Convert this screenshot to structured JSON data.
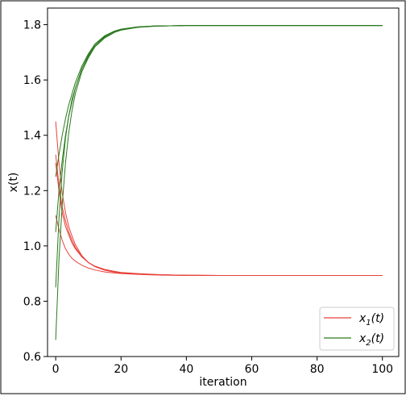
{
  "chart_data": {
    "type": "line",
    "title": "",
    "xlabel": "iteration",
    "ylabel": "x(t)",
    "xlim": [
      -2.5,
      105
    ],
    "ylim": [
      0.6,
      1.86
    ],
    "xticks": [
      0,
      20,
      40,
      60,
      80,
      100
    ],
    "yticks": [
      0.6,
      0.8,
      1.0,
      1.2,
      1.4,
      1.6,
      1.8
    ],
    "xtick_labels": [
      "0",
      "20",
      "40",
      "60",
      "80",
      "100"
    ],
    "ytick_labels": [
      "0.6",
      "0.8",
      "1.0",
      "1.2",
      "1.4",
      "1.6",
      "1.8"
    ],
    "grid": false,
    "legend_position": "bottom-right",
    "legend": [
      {
        "label_main": "x",
        "label_sub": "1",
        "label_tail": "(t)",
        "color": "#e8413a"
      },
      {
        "label_main": "x",
        "label_sub": "2",
        "label_tail": "(t)",
        "color": "#2b7a1e"
      }
    ],
    "x_samples": [
      0,
      1,
      2,
      3,
      4,
      5,
      6,
      8,
      10,
      12,
      15,
      18,
      20,
      25,
      30,
      35,
      40,
      50,
      60,
      80,
      100
    ],
    "series": [
      {
        "group": "x1",
        "color": "#e8413a",
        "values": [
          1.45,
          1.3,
          1.19,
          1.12,
          1.07,
          1.035,
          1.005,
          0.965,
          0.94,
          0.925,
          0.912,
          0.905,
          0.902,
          0.898,
          0.896,
          0.895,
          0.894,
          0.893,
          0.893,
          0.893,
          0.893
        ]
      },
      {
        "group": "x1",
        "color": "#e8413a",
        "values": [
          1.33,
          1.22,
          1.14,
          1.09,
          1.05,
          1.02,
          0.995,
          0.962,
          0.94,
          0.926,
          0.914,
          0.907,
          0.903,
          0.899,
          0.896,
          0.895,
          0.894,
          0.893,
          0.893,
          0.893,
          0.893
        ]
      },
      {
        "group": "x1",
        "color": "#e8413a",
        "values": [
          1.11,
          1.06,
          1.02,
          0.99,
          0.97,
          0.955,
          0.945,
          0.93,
          0.92,
          0.913,
          0.906,
          0.902,
          0.9,
          0.897,
          0.895,
          0.894,
          0.893,
          0.893,
          0.893,
          0.893,
          0.893
        ]
      },
      {
        "group": "x1",
        "color": "#e8413a",
        "values": [
          1.3,
          1.2,
          1.12,
          1.07,
          1.04,
          1.01,
          0.99,
          0.96,
          0.94,
          0.927,
          0.915,
          0.908,
          0.904,
          0.9,
          0.897,
          0.895,
          0.894,
          0.893,
          0.893,
          0.893,
          0.893
        ]
      },
      {
        "group": "x2",
        "color": "#2b7a1e",
        "values": [
          0.66,
          0.95,
          1.15,
          1.3,
          1.41,
          1.49,
          1.55,
          1.63,
          1.68,
          1.72,
          1.755,
          1.775,
          1.782,
          1.791,
          1.795,
          1.796,
          1.797,
          1.797,
          1.797,
          1.797,
          1.797
        ]
      },
      {
        "group": "x2",
        "color": "#2b7a1e",
        "values": [
          0.85,
          1.1,
          1.27,
          1.39,
          1.47,
          1.53,
          1.57,
          1.64,
          1.685,
          1.72,
          1.752,
          1.772,
          1.78,
          1.79,
          1.794,
          1.796,
          1.797,
          1.797,
          1.797,
          1.797,
          1.797
        ]
      },
      {
        "group": "x2",
        "color": "#2b7a1e",
        "values": [
          1.25,
          1.33,
          1.4,
          1.46,
          1.51,
          1.55,
          1.59,
          1.65,
          1.695,
          1.73,
          1.76,
          1.777,
          1.784,
          1.792,
          1.795,
          1.796,
          1.797,
          1.797,
          1.797,
          1.797,
          1.797
        ]
      },
      {
        "group": "x2",
        "color": "#2b7a1e",
        "values": [
          1.05,
          1.2,
          1.31,
          1.4,
          1.47,
          1.52,
          1.57,
          1.64,
          1.69,
          1.725,
          1.757,
          1.775,
          1.782,
          1.791,
          1.795,
          1.796,
          1.797,
          1.797,
          1.797,
          1.797,
          1.797
        ]
      }
    ]
  }
}
